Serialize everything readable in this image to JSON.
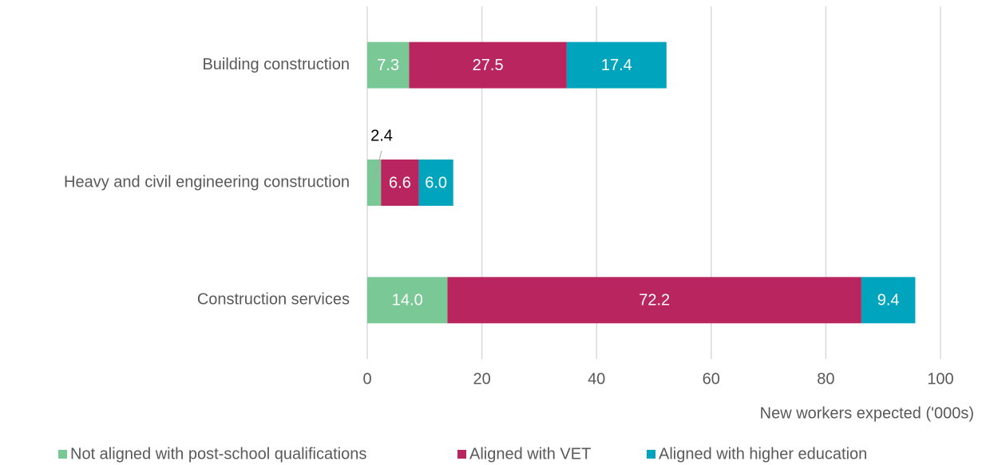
{
  "chart_data": {
    "type": "stacked_barh",
    "categories": [
      "Building construction",
      "Heavy and civil engineering construction",
      "Construction services"
    ],
    "series": [
      {
        "name": "Not aligned with post-school qualifications",
        "color": "#7ac896",
        "values": [
          7.3,
          2.4,
          14.0
        ],
        "value_labels": [
          "7.3",
          "2.4",
          "14.0"
        ]
      },
      {
        "name": "Aligned with VET",
        "color": "#b8255f",
        "values": [
          27.5,
          6.6,
          72.2
        ],
        "value_labels": [
          "27.5",
          "6.6",
          "72.2"
        ]
      },
      {
        "name": "Aligned with higher education",
        "color": "#00a5bd",
        "values": [
          17.4,
          6.0,
          9.4
        ],
        "value_labels": [
          "17.4",
          "6.0",
          "9.4"
        ]
      }
    ],
    "xlabel": "New workers expected ('000s)",
    "xlim": [
      0,
      100
    ],
    "xticks": [
      0,
      20,
      40,
      60,
      80,
      100
    ],
    "grid": true,
    "legend": "bottom"
  }
}
